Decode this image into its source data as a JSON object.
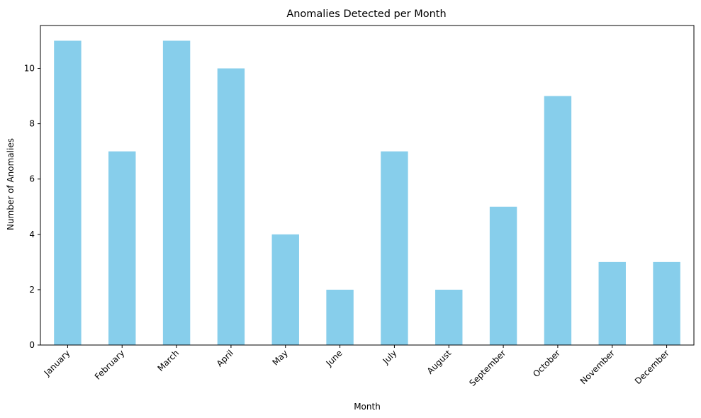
{
  "chart_data": {
    "type": "bar",
    "title": "Anomalies Detected per Month",
    "xlabel": "Month",
    "ylabel": "Number of Anomalies",
    "categories": [
      "January",
      "February",
      "March",
      "April",
      "May",
      "June",
      "July",
      "August",
      "September",
      "October",
      "November",
      "December"
    ],
    "values": [
      11,
      7,
      11,
      10,
      4,
      2,
      7,
      2,
      5,
      9,
      3,
      3
    ],
    "ylim": [
      0,
      11.55
    ],
    "yticks": [
      0,
      2,
      4,
      6,
      8,
      10
    ],
    "bar_color": "#87ceeb",
    "grid": false,
    "legend": false
  }
}
